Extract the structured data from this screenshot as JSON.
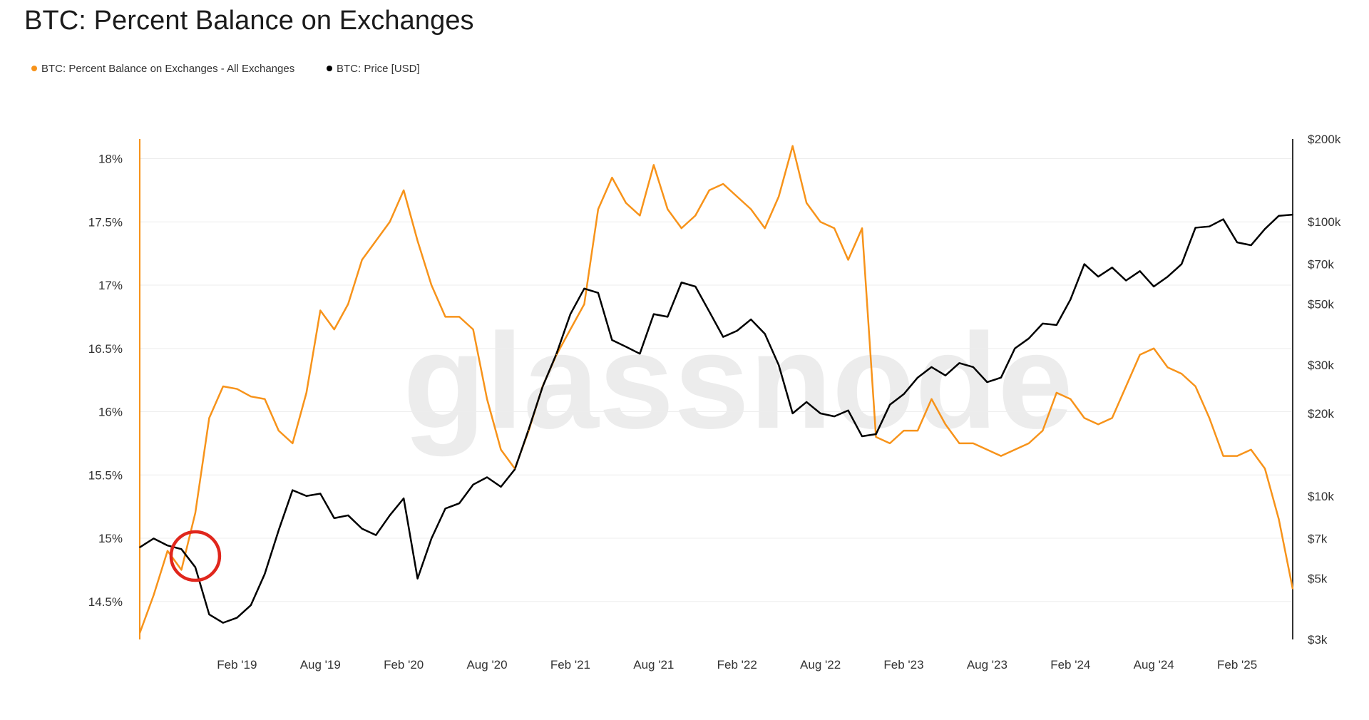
{
  "title": "BTC: Percent Balance on Exchanges",
  "watermark": "glassnode",
  "legend": [
    {
      "label": "BTC: Percent Balance on Exchanges - All Exchanges",
      "color": "#f7931a"
    },
    {
      "label": "BTC: Price [USD]",
      "color": "#000000"
    }
  ],
  "annotation": {
    "type": "circle",
    "color": "#e0261c",
    "near_date": "2018-11"
  },
  "chart_data": {
    "type": "line",
    "title": "BTC: Percent Balance on Exchanges",
    "xlabel": "",
    "x_ticks": [
      "Feb '19",
      "Aug '19",
      "Feb '20",
      "Aug '20",
      "Feb '21",
      "Aug '21",
      "Feb '22",
      "Aug '22",
      "Feb '23",
      "Aug '23",
      "Feb '24",
      "Aug '24",
      "Feb '25"
    ],
    "x_range": [
      "2018-07",
      "2025-06"
    ],
    "y_left": {
      "label": "",
      "ticks": [
        "14.5%",
        "15%",
        "15.5%",
        "16%",
        "16.5%",
        "17%",
        "17.5%",
        "18%"
      ],
      "range": [
        14.2,
        18.2
      ]
    },
    "y_right": {
      "label": "",
      "scale": "log",
      "ticks": [
        "$3k",
        "$5k",
        "$7k",
        "$10k",
        "$20k",
        "$30k",
        "$50k",
        "$70k",
        "$100k",
        "$200k"
      ],
      "range": [
        3000,
        200000
      ]
    },
    "grid": true,
    "legend_position": "top-left",
    "series": [
      {
        "name": "BTC: Percent Balance on Exchanges - All Exchanges",
        "axis": "left",
        "color": "#f7931a",
        "x": [
          "2018-07",
          "2018-08",
          "2018-09",
          "2018-10",
          "2018-11",
          "2018-12",
          "2019-01",
          "2019-02",
          "2019-03",
          "2019-04",
          "2019-05",
          "2019-06",
          "2019-07",
          "2019-08",
          "2019-09",
          "2019-10",
          "2019-11",
          "2019-12",
          "2020-01",
          "2020-02",
          "2020-03",
          "2020-04",
          "2020-05",
          "2020-06",
          "2020-07",
          "2020-08",
          "2020-09",
          "2020-10",
          "2020-11",
          "2020-12",
          "2021-01",
          "2021-02",
          "2021-03",
          "2021-04",
          "2021-05",
          "2021-06",
          "2021-07",
          "2021-08",
          "2021-09",
          "2021-10",
          "2021-11",
          "2021-12",
          "2022-01",
          "2022-02",
          "2022-03",
          "2022-04",
          "2022-05",
          "2022-06",
          "2022-07",
          "2022-08",
          "2022-09",
          "2022-10",
          "2022-11",
          "2022-12",
          "2023-01",
          "2023-02",
          "2023-03",
          "2023-04",
          "2023-05",
          "2023-06",
          "2023-07",
          "2023-08",
          "2023-09",
          "2023-10",
          "2023-11",
          "2023-12",
          "2024-01",
          "2024-02",
          "2024-03",
          "2024-04",
          "2024-05",
          "2024-06",
          "2024-07",
          "2024-08",
          "2024-09",
          "2024-10",
          "2024-11",
          "2024-12",
          "2025-01",
          "2025-02",
          "2025-03",
          "2025-04",
          "2025-05",
          "2025-06"
        ],
        "values": [
          14.25,
          14.55,
          14.9,
          14.75,
          15.2,
          15.95,
          16.2,
          16.18,
          16.12,
          16.1,
          15.85,
          15.75,
          16.15,
          16.8,
          16.65,
          16.85,
          17.2,
          17.35,
          17.5,
          17.75,
          17.35,
          17.0,
          16.75,
          16.75,
          16.65,
          16.1,
          15.7,
          15.55,
          15.85,
          16.2,
          16.45,
          16.65,
          16.85,
          17.6,
          17.85,
          17.65,
          17.55,
          17.95,
          17.6,
          17.45,
          17.55,
          17.75,
          17.8,
          17.7,
          17.6,
          17.45,
          17.7,
          18.1,
          17.65,
          17.5,
          17.45,
          17.2,
          17.45,
          15.8,
          15.75,
          15.85,
          15.85,
          16.1,
          15.9,
          15.75,
          15.75,
          15.7,
          15.65,
          15.7,
          15.75,
          15.85,
          16.15,
          16.1,
          15.95,
          15.9,
          15.95,
          16.2,
          16.45,
          16.5,
          16.35,
          16.3,
          16.2,
          15.95,
          15.65,
          15.65,
          15.7,
          15.55,
          15.15,
          14.6
        ]
      },
      {
        "name": "BTC: Price [USD]",
        "axis": "right",
        "color": "#000000",
        "x": [
          "2018-07",
          "2018-08",
          "2018-09",
          "2018-10",
          "2018-11",
          "2018-12",
          "2019-01",
          "2019-02",
          "2019-03",
          "2019-04",
          "2019-05",
          "2019-06",
          "2019-07",
          "2019-08",
          "2019-09",
          "2019-10",
          "2019-11",
          "2019-12",
          "2020-01",
          "2020-02",
          "2020-03",
          "2020-04",
          "2020-05",
          "2020-06",
          "2020-07",
          "2020-08",
          "2020-09",
          "2020-10",
          "2020-11",
          "2020-12",
          "2021-01",
          "2021-02",
          "2021-03",
          "2021-04",
          "2021-05",
          "2021-06",
          "2021-07",
          "2021-08",
          "2021-09",
          "2021-10",
          "2021-11",
          "2021-12",
          "2022-01",
          "2022-02",
          "2022-03",
          "2022-04",
          "2022-05",
          "2022-06",
          "2022-07",
          "2022-08",
          "2022-09",
          "2022-10",
          "2022-11",
          "2022-12",
          "2023-01",
          "2023-02",
          "2023-03",
          "2023-04",
          "2023-05",
          "2023-06",
          "2023-07",
          "2023-08",
          "2023-09",
          "2023-10",
          "2023-11",
          "2023-12",
          "2024-01",
          "2024-02",
          "2024-03",
          "2024-04",
          "2024-05",
          "2024-06",
          "2024-07",
          "2024-08",
          "2024-09",
          "2024-10",
          "2024-11",
          "2024-12",
          "2025-01",
          "2025-02",
          "2025-03",
          "2025-04",
          "2025-05",
          "2025-06"
        ],
        "values": [
          6500,
          7000,
          6600,
          6400,
          5500,
          3700,
          3450,
          3600,
          4000,
          5200,
          7500,
          10500,
          10000,
          10200,
          8300,
          8500,
          7600,
          7200,
          8500,
          9800,
          5000,
          7000,
          9000,
          9400,
          11000,
          11700,
          10800,
          12500,
          17500,
          25000,
          33000,
          46000,
          57000,
          55000,
          37000,
          35000,
          33000,
          46000,
          45000,
          60000,
          58000,
          47000,
          38000,
          40000,
          44000,
          39000,
          30000,
          20000,
          22000,
          20000,
          19500,
          20500,
          16500,
          16800,
          21500,
          23500,
          27000,
          29500,
          27500,
          30500,
          29500,
          26000,
          27000,
          34500,
          37500,
          42500,
          42000,
          52000,
          70000,
          63000,
          68000,
          61000,
          66000,
          58000,
          63000,
          70000,
          95000,
          96000,
          102000,
          84000,
          82000,
          94000,
          105000,
          106000
        ]
      }
    ]
  }
}
